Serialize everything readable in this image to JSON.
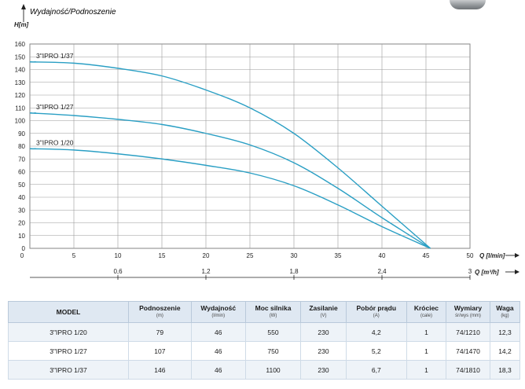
{
  "chart_data": {
    "type": "line",
    "ylabel_top": "Wydajność/Podnoszenie",
    "ylabel": "H[m]",
    "xlabel": "Q [l/min]",
    "x2label": "Q [m³/h]",
    "ylim": [
      0,
      160
    ],
    "xlim": [
      0,
      50
    ],
    "yticks": [
      0,
      10,
      20,
      30,
      40,
      50,
      60,
      70,
      80,
      90,
      100,
      110,
      120,
      130,
      140,
      150,
      160
    ],
    "xticks": [
      0,
      5,
      10,
      15,
      20,
      25,
      30,
      35,
      40,
      45,
      50
    ],
    "x2ticks": [
      {
        "value": 0.6,
        "label": "0,6"
      },
      {
        "value": 1.2,
        "label": "1,2"
      },
      {
        "value": 1.8,
        "label": "1,8"
      },
      {
        "value": 2.4,
        "label": "2,4"
      },
      {
        "value": 3,
        "label": "3"
      }
    ],
    "grid": true,
    "series": [
      {
        "name": "3\"IPRO 1/37",
        "color": "#2a9fc4",
        "x": [
          0,
          5,
          10,
          15,
          20,
          25,
          30,
          35,
          40,
          45.5
        ],
        "y": [
          146,
          145,
          141,
          135,
          124,
          110,
          90,
          63,
          33,
          0
        ]
      },
      {
        "name": "3\"IPRO 1/27",
        "color": "#2a9fc4",
        "x": [
          0,
          5,
          10,
          15,
          20,
          25,
          30,
          35,
          40,
          45.5
        ],
        "y": [
          106,
          104,
          101,
          97,
          90,
          81,
          67,
          47,
          24,
          0
        ]
      },
      {
        "name": "3\"IPRO 1/20",
        "color": "#2a9fc4",
        "x": [
          0,
          5,
          10,
          15,
          20,
          25,
          30,
          35,
          40,
          45.5
        ],
        "y": [
          78,
          77,
          74,
          70,
          65,
          59,
          49,
          34,
          17,
          0
        ]
      }
    ]
  },
  "table": {
    "headers": [
      {
        "label": "MODEL",
        "unit": ""
      },
      {
        "label": "Podnoszenie",
        "unit": "(m)"
      },
      {
        "label": "Wydajność",
        "unit": "(l/min)"
      },
      {
        "label": "Moc silnika",
        "unit": "(W)"
      },
      {
        "label": "Zasilanie",
        "unit": "(V)"
      },
      {
        "label": "Pobór prądu",
        "unit": "(A)"
      },
      {
        "label": "Króciec",
        "unit": "(cale)"
      },
      {
        "label": "Wymiary",
        "unit": "śr/wys (mm)"
      },
      {
        "label": "Waga",
        "unit": "(kg)"
      }
    ],
    "rows": [
      [
        "3\"IPRO 1/20",
        "79",
        "46",
        "550",
        "230",
        "4,2",
        "1",
        "74/1210",
        "12,3"
      ],
      [
        "3\"IPRO 1/27",
        "107",
        "46",
        "750",
        "230",
        "5,2",
        "1",
        "74/1470",
        "14,2"
      ],
      [
        "3\"IPRO 1/37",
        "146",
        "46",
        "1100",
        "230",
        "6,7",
        "1",
        "74/1810",
        "18,3"
      ]
    ]
  }
}
